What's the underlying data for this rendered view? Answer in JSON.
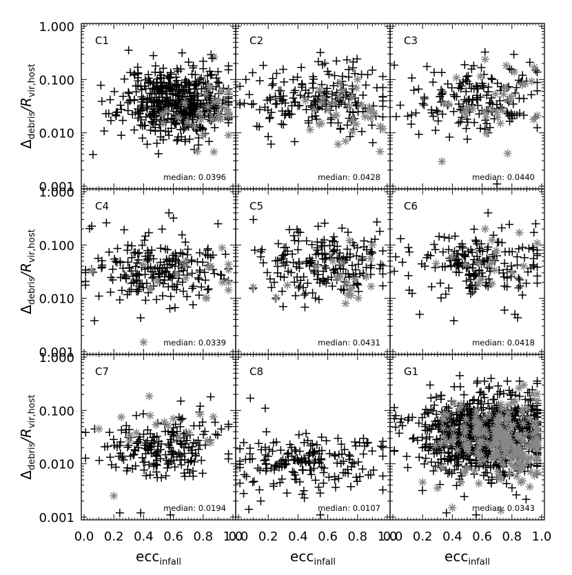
{
  "figure": {
    "ylabel_main": "Δ",
    "ylabel_main_sub": "debris",
    "ylabel_div": "/R",
    "ylabel_div_sub": "vir,host",
    "xlabel_main": "ecc",
    "xlabel_sub": "infall",
    "median_prefix": "median:"
  },
  "chart_data": [
    {
      "type": "scatter",
      "panel": "C1",
      "median_label": "median: 0.0396",
      "xlim": [
        0,
        1
      ],
      "ylim": [
        0.001,
        1
      ],
      "yscale": "log",
      "xticks": [],
      "yticks": [
        "1.000",
        "0.100",
        "0.010",
        "0.001"
      ],
      "n_black": 480,
      "n_gray": 25,
      "cx": 0.62,
      "cy": -1.4,
      "sx": 0.18,
      "sy": 0.33,
      "gcx": 0.84,
      "gcy": -1.6,
      "seed": 11,
      "series": [
        {
          "name": "",
          "marker": "plus",
          "color": "#000000",
          "points": [
            [
              0.06,
              0.0039
            ],
            [
              0.12,
              0.039
            ],
            [
              0.18,
              0.017
            ],
            [
              0.25,
              0.009
            ],
            [
              0.36,
              0.17
            ],
            [
              0.48,
              0.18
            ],
            [
              0.57,
              0.009
            ],
            [
              0.74,
              0.0049
            ],
            [
              0.8,
              0.22
            ],
            [
              0.86,
              0.25
            ],
            [
              0.9,
              0.14
            ],
            [
              0.68,
              0.0075
            ]
          ]
        },
        {
          "name": "",
          "marker": "asterisk",
          "color": "#888888",
          "points": [
            [
              0.76,
              0.0045
            ],
            [
              0.8,
              0.009
            ],
            [
              0.86,
              0.018
            ],
            [
              0.9,
              0.04
            ],
            [
              0.92,
              0.06
            ]
          ]
        }
      ]
    },
    {
      "type": "scatter",
      "panel": "C2",
      "median_label": "median: 0.0428",
      "xlim": [
        0,
        1
      ],
      "ylim": [
        0.001,
        1
      ],
      "yscale": "log",
      "xticks": [],
      "yticks": [],
      "n_black": 190,
      "n_gray": 30,
      "cx": 0.55,
      "cy": -1.37,
      "sx": 0.22,
      "sy": 0.3,
      "gcx": 0.72,
      "gcy": -1.5,
      "seed": 22,
      "series": [
        {
          "name": "",
          "marker": "plus",
          "color": "#000000",
          "points": [
            [
              0.05,
              0.1
            ],
            [
              0.1,
              0.035
            ],
            [
              0.14,
              0.013
            ],
            [
              0.2,
              0.0085
            ],
            [
              0.55,
              0.32
            ],
            [
              0.75,
              0.0085
            ],
            [
              0.9,
              0.15
            ],
            [
              0.93,
              0.07
            ]
          ]
        },
        {
          "name": "",
          "marker": "asterisk",
          "color": "#888888",
          "points": [
            [
              0.72,
              0.007
            ],
            [
              0.8,
              0.1
            ],
            [
              0.85,
              0.02
            ],
            [
              0.88,
              0.03
            ]
          ]
        }
      ]
    },
    {
      "type": "scatter",
      "panel": "C3",
      "median_label": "median: 0.0440",
      "xlim": [
        0,
        1
      ],
      "ylim": [
        0.001,
        1
      ],
      "yscale": "log",
      "xticks": [],
      "yticks": [],
      "n_black": 160,
      "n_gray": 28,
      "cx": 0.55,
      "cy": -1.36,
      "sx": 0.22,
      "sy": 0.32,
      "gcx": 0.7,
      "gcy": -1.4,
      "seed": 33,
      "series": [
        {
          "name": "",
          "marker": "plus",
          "color": "#000000",
          "points": [
            [
              0.05,
              0.033
            ],
            [
              0.7,
              0.0011
            ],
            [
              0.92,
              0.21
            ],
            [
              0.96,
              0.15
            ]
          ]
        },
        {
          "name": "",
          "marker": "asterisk",
          "color": "#888888",
          "points": [
            [
              0.33,
              0.0029
            ],
            [
              0.62,
              0.24
            ],
            [
              0.87,
              0.08
            ],
            [
              0.95,
              0.17
            ]
          ]
        }
      ]
    },
    {
      "type": "scatter",
      "panel": "C4",
      "median_label": "median: 0.0339",
      "xlim": [
        0,
        1
      ],
      "ylim": [
        0.001,
        1
      ],
      "yscale": "log",
      "xticks": [],
      "yticks": [
        "1.000",
        "0.100",
        "0.010",
        "0.001"
      ],
      "n_black": 200,
      "n_gray": 15,
      "cx": 0.5,
      "cy": -1.47,
      "sx": 0.25,
      "sy": 0.32,
      "gcx": 0.75,
      "gcy": -1.55,
      "seed": 44,
      "series": [
        {
          "name": "",
          "marker": "plus",
          "color": "#000000",
          "points": [
            [
              0.05,
              0.035
            ],
            [
              0.07,
              0.0038
            ],
            [
              0.1,
              0.011
            ],
            [
              0.15,
              0.26
            ],
            [
              0.38,
              0.0043
            ],
            [
              0.57,
              0.4
            ],
            [
              0.6,
              0.32
            ],
            [
              0.9,
              0.25
            ]
          ]
        },
        {
          "name": "",
          "marker": "asterisk",
          "color": "#888888",
          "points": [
            [
              0.05,
              0.033
            ],
            [
              0.4,
              0.0015
            ],
            [
              0.82,
              0.01
            ],
            [
              0.85,
              0.04
            ]
          ]
        }
      ]
    },
    {
      "type": "scatter",
      "panel": "C5",
      "median_label": "median: 0.0431",
      "xlim": [
        0,
        1
      ],
      "ylim": [
        0.001,
        1
      ],
      "yscale": "log",
      "xticks": [],
      "yticks": [],
      "n_black": 190,
      "n_gray": 18,
      "cx": 0.55,
      "cy": -1.37,
      "sx": 0.22,
      "sy": 0.3,
      "gcx": 0.7,
      "gcy": -1.55,
      "seed": 55,
      "series": [
        {
          "name": "",
          "marker": "plus",
          "color": "#000000",
          "points": [
            [
              0.1,
              0.3
            ],
            [
              0.11,
              0.08
            ],
            [
              0.3,
              0.007
            ],
            [
              0.93,
              0.27
            ],
            [
              0.95,
              0.18
            ]
          ]
        },
        {
          "name": "",
          "marker": "asterisk",
          "color": "#888888",
          "points": [
            [
              0.1,
              0.016
            ],
            [
              0.72,
              0.008
            ],
            [
              0.9,
              0.1
            ]
          ]
        }
      ]
    },
    {
      "type": "scatter",
      "panel": "C6",
      "median_label": "median: 0.0418",
      "xlim": [
        0,
        1
      ],
      "ylim": [
        0.001,
        1
      ],
      "yscale": "log",
      "xticks": [],
      "yticks": [],
      "n_black": 170,
      "n_gray": 15,
      "cx": 0.58,
      "cy": -1.4,
      "sx": 0.22,
      "sy": 0.3,
      "gcx": 0.72,
      "gcy": -1.45,
      "seed": 66,
      "series": [
        {
          "name": "",
          "marker": "plus",
          "color": "#000000",
          "points": [
            [
              0.02,
              0.06
            ],
            [
              0.18,
              0.005
            ],
            [
              0.41,
              0.0038
            ],
            [
              0.64,
              0.4
            ],
            [
              0.75,
              0.006
            ],
            [
              0.82,
              0.005
            ],
            [
              0.96,
              0.25
            ],
            [
              0.94,
              0.09
            ]
          ]
        },
        {
          "name": "",
          "marker": "asterisk",
          "color": "#888888",
          "points": [
            [
              0.62,
              0.2
            ],
            [
              0.85,
              0.17
            ],
            [
              0.88,
              0.04
            ]
          ]
        }
      ]
    },
    {
      "type": "scatter",
      "panel": "C7",
      "median_label": "median: 0.0194",
      "xlim": [
        0,
        1
      ],
      "ylim": [
        0.001,
        1
      ],
      "yscale": "log",
      "xticks": [
        "0.0",
        "0.2",
        "0.4",
        "0.6",
        "0.8",
        "1.0"
      ],
      "yticks": [
        "1.000",
        "0.100",
        "0.010",
        "0.001"
      ],
      "n_black": 190,
      "n_gray": 12,
      "cx": 0.52,
      "cy": -1.72,
      "sx": 0.23,
      "sy": 0.28,
      "gcx": 0.55,
      "gcy": -1.4,
      "seed": 77,
      "series": [
        {
          "name": "",
          "marker": "plus",
          "color": "#000000",
          "points": [
            [
              0.24,
              0.0012
            ],
            [
              0.38,
              0.0012
            ],
            [
              0.58,
              0.0011
            ],
            [
              0.65,
              0.15
            ],
            [
              0.78,
              0.12
            ],
            [
              0.85,
              0.18
            ],
            [
              0.88,
              0.06
            ]
          ]
        },
        {
          "name": "",
          "marker": "asterisk",
          "color": "#888888",
          "points": [
            [
              0.1,
              0.045
            ],
            [
              0.2,
              0.0025
            ],
            [
              0.25,
              0.075
            ],
            [
              0.6,
              0.07
            ],
            [
              0.78,
              0.085
            ],
            [
              0.85,
              0.025
            ]
          ]
        }
      ]
    },
    {
      "type": "scatter",
      "panel": "C8",
      "median_label": "median: 0.0107",
      "xlim": [
        0,
        1
      ],
      "ylim": [
        0.001,
        1
      ],
      "yscale": "log",
      "xticks": [
        "0.0",
        "0.2",
        "0.4",
        "0.6",
        "0.8",
        "1.0"
      ],
      "yticks": [],
      "n_black": 180,
      "n_gray": 0,
      "cx": 0.48,
      "cy": -1.98,
      "sx": 0.24,
      "sy": 0.27,
      "gcx": 0.5,
      "gcy": -2.0,
      "seed": 88,
      "series": [
        {
          "name": "",
          "marker": "plus",
          "color": "#000000",
          "points": [
            [
              0.08,
              0.17
            ],
            [
              0.18,
              0.11
            ],
            [
              0.07,
              0.0014
            ],
            [
              0.15,
              0.002
            ],
            [
              0.55,
              0.0011
            ],
            [
              0.84,
              0.03
            ],
            [
              0.87,
              0.025
            ]
          ]
        }
      ]
    },
    {
      "type": "scatter",
      "panel": "G1",
      "median_label": "median: 0.0343",
      "xlim": [
        0,
        1
      ],
      "ylim": [
        0.001,
        1
      ],
      "yscale": "log",
      "xticks": [
        "0.0",
        "0.2",
        "0.4",
        "0.6",
        "0.8",
        "1.0"
      ],
      "yticks": [],
      "n_black": 850,
      "n_gray": 200,
      "cx": 0.62,
      "cy": -1.46,
      "sx": 0.22,
      "sy": 0.38,
      "gcx": 0.72,
      "gcy": -1.6,
      "seed": 99,
      "series": [
        {
          "name": "",
          "marker": "plus",
          "color": "#000000",
          "points": [
            [
              0.02,
              0.08
            ],
            [
              0.05,
              0.06
            ],
            [
              0.1,
              0.0085
            ],
            [
              0.25,
              0.3
            ],
            [
              0.45,
              0.45
            ],
            [
              0.66,
              0.4
            ],
            [
              0.36,
              0.0012
            ],
            [
              0.56,
              0.0011
            ],
            [
              0.95,
              0.08
            ]
          ]
        },
        {
          "name": "",
          "marker": "asterisk",
          "color": "#888888",
          "points": [
            [
              0.2,
              0.0045
            ],
            [
              0.3,
              0.0035
            ],
            [
              0.4,
              0.0015
            ],
            [
              0.86,
              0.0045
            ],
            [
              0.92,
              0.0037
            ],
            [
              0.88,
              0.3
            ],
            [
              0.94,
              0.2
            ]
          ]
        }
      ]
    }
  ]
}
